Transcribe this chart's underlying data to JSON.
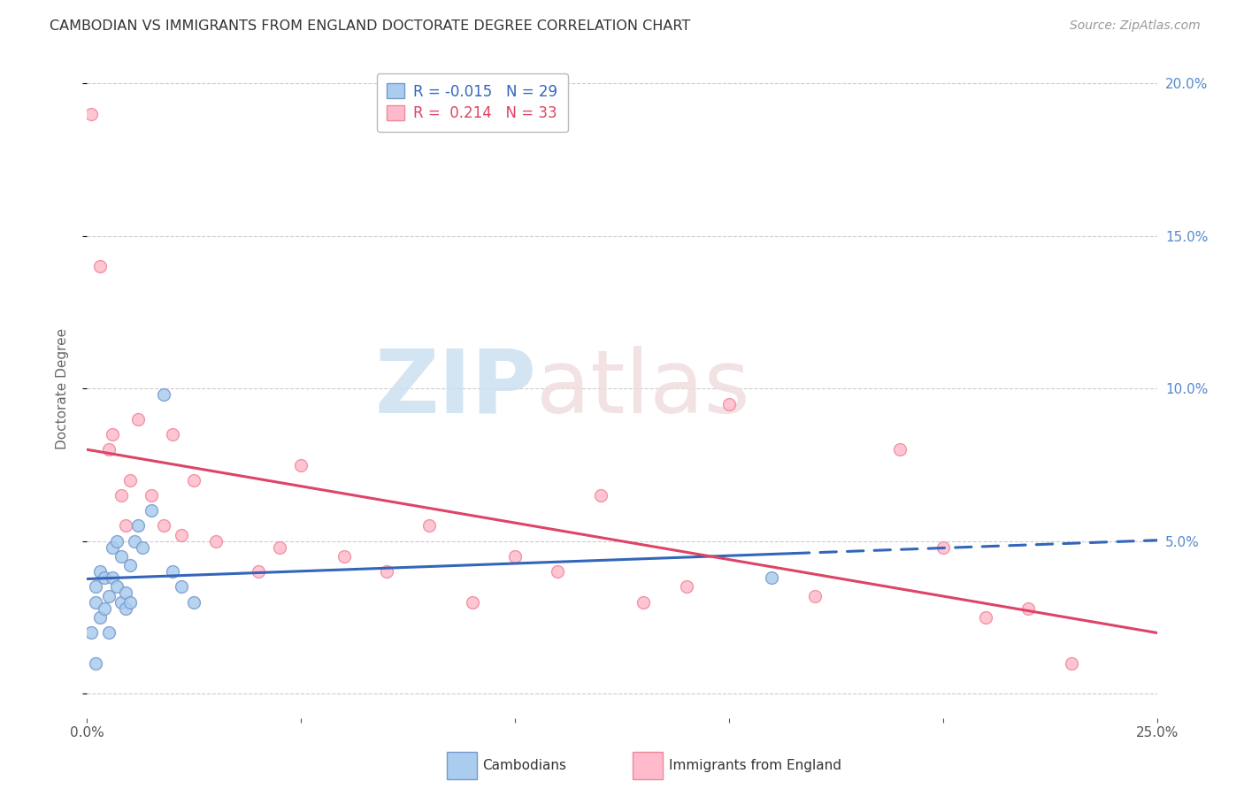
{
  "title": "CAMBODIAN VS IMMIGRANTS FROM ENGLAND DOCTORATE DEGREE CORRELATION CHART",
  "source": "Source: ZipAtlas.com",
  "ylabel": "Doctorate Degree",
  "xlim": [
    0.0,
    0.25
  ],
  "ylim": [
    -0.008,
    0.208
  ],
  "xticks": [
    0.0,
    0.05,
    0.1,
    0.15,
    0.2,
    0.25
  ],
  "yticks": [
    0.0,
    0.05,
    0.1,
    0.15,
    0.2
  ],
  "xticklabels": [
    "0.0%",
    "",
    "",
    "",
    "",
    "25.0%"
  ],
  "yticklabels_right": [
    "",
    "5.0%",
    "10.0%",
    "15.0%",
    "20.0%"
  ],
  "yticklabels_right_colors": [
    "#888888",
    "#5588cc",
    "#5588cc",
    "#5588cc",
    "#5588cc"
  ],
  "legend_R1": "-0.015",
  "legend_N1": "29",
  "legend_R2": "0.214",
  "legend_N2": "33",
  "blue_face": "#aaccee",
  "blue_edge": "#7799cc",
  "pink_face": "#ffbbcc",
  "pink_edge": "#ee8899",
  "blue_line_color": "#3366bb",
  "pink_line_color": "#dd4466",
  "marker_size": 100,
  "cambodians_x": [
    0.001,
    0.002,
    0.002,
    0.003,
    0.003,
    0.004,
    0.004,
    0.005,
    0.005,
    0.006,
    0.006,
    0.007,
    0.007,
    0.008,
    0.008,
    0.009,
    0.009,
    0.01,
    0.01,
    0.011,
    0.012,
    0.013,
    0.015,
    0.018,
    0.02,
    0.022,
    0.025,
    0.16,
    0.002
  ],
  "cambodians_y": [
    0.02,
    0.03,
    0.035,
    0.025,
    0.04,
    0.038,
    0.028,
    0.032,
    0.02,
    0.038,
    0.048,
    0.035,
    0.05,
    0.03,
    0.045,
    0.033,
    0.028,
    0.042,
    0.03,
    0.05,
    0.055,
    0.048,
    0.06,
    0.098,
    0.04,
    0.035,
    0.03,
    0.038,
    0.01
  ],
  "england_x": [
    0.001,
    0.003,
    0.005,
    0.006,
    0.008,
    0.009,
    0.01,
    0.012,
    0.015,
    0.018,
    0.02,
    0.022,
    0.025,
    0.03,
    0.04,
    0.045,
    0.05,
    0.06,
    0.07,
    0.08,
    0.09,
    0.1,
    0.11,
    0.12,
    0.13,
    0.14,
    0.15,
    0.17,
    0.19,
    0.2,
    0.21,
    0.22,
    0.23
  ],
  "england_y": [
    0.19,
    0.14,
    0.08,
    0.085,
    0.065,
    0.055,
    0.07,
    0.09,
    0.065,
    0.055,
    0.085,
    0.052,
    0.07,
    0.05,
    0.04,
    0.048,
    0.075,
    0.045,
    0.04,
    0.055,
    0.03,
    0.045,
    0.04,
    0.065,
    0.03,
    0.035,
    0.095,
    0.032,
    0.08,
    0.048,
    0.025,
    0.028,
    0.01
  ]
}
